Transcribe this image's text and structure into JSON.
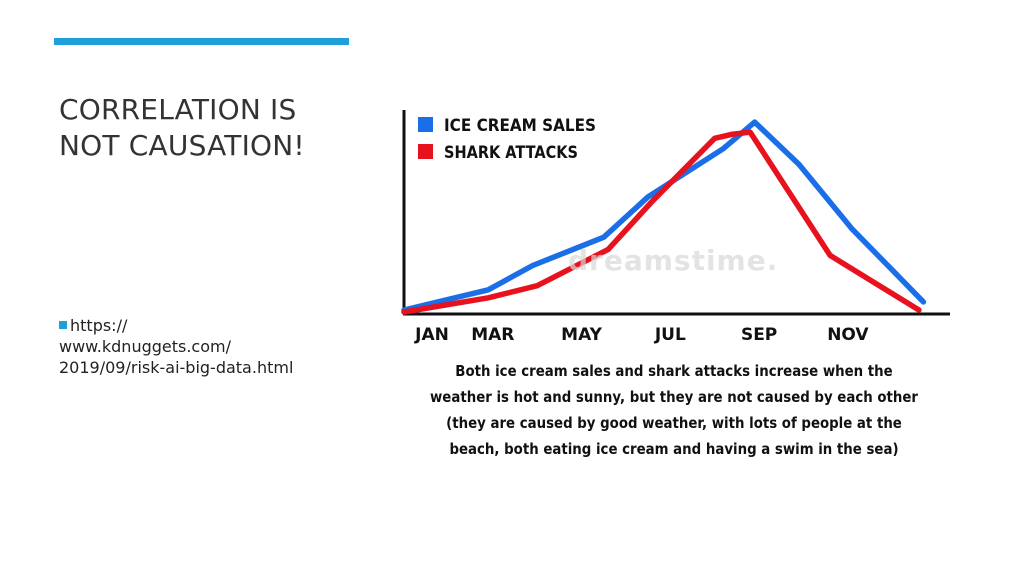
{
  "slide": {
    "title": "CORRELATION IS NOT CAUSATION!",
    "bullet": "https://\nwww.kdnuggets.com/\n2019/09/risk-ai-big-data.html",
    "accent_color": "#1f9fd8"
  },
  "figure": {
    "watermark": "dreamstime.",
    "caption": "Both ice cream sales and shark attacks increase when the weather is hot and sunny, but they are not caused by each other (they are caused by good weather, with lots of people at the beach, both eating ice cream and having a swim in the sea)"
  },
  "chart_data": {
    "type": "line",
    "title": "",
    "xlabel": "",
    "ylabel": "",
    "ylim": [
      0,
      100
    ],
    "grid": false,
    "legend_placement": "top-left",
    "x": [
      0,
      1,
      1.75,
      2.5,
      3.5,
      4.25,
      5,
      5.5,
      6,
      6.75,
      7.5,
      8.5
    ],
    "tick_labels": [
      {
        "x": 0,
        "label": "JAN"
      },
      {
        "x": 2,
        "label": "MAR"
      },
      {
        "x": 4,
        "label": "MAY"
      },
      {
        "x": 6,
        "label": "JUL"
      },
      {
        "x": 8,
        "label": "SEP"
      },
      {
        "x": 10,
        "label": "NOV"
      }
    ],
    "xlim": [
      0,
      12.3
    ],
    "series": [
      {
        "name": "ICE CREAM SALES",
        "color": "#1a6fe8",
        "x": [
          0,
          1.9,
          2.9,
          4.5,
          5.5,
          7.2,
          7.9,
          8.9,
          10.1,
          11.7
        ],
        "values": [
          2,
          12,
          24,
          38,
          58,
          82,
          95,
          74,
          42,
          6
        ]
      },
      {
        "name": "SHARK ATTACKS",
        "color": "#e8121e",
        "x": [
          0,
          1.9,
          3.0,
          4.6,
          5.6,
          7.0,
          7.4,
          7.8,
          9.6,
          11.6
        ],
        "values": [
          1,
          8,
          14,
          32,
          56,
          87,
          89,
          90,
          29,
          2
        ]
      }
    ]
  }
}
